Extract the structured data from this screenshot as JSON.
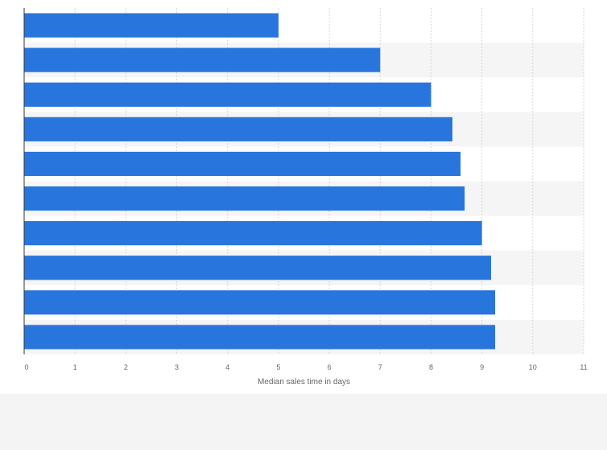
{
  "chart_data": {
    "type": "bar",
    "orientation": "horizontal",
    "categories": [
      "",
      "",
      "",
      "",
      "",
      "",
      "",
      "",
      "",
      ""
    ],
    "values": [
      5.0,
      7.0,
      8.0,
      8.42,
      8.58,
      8.66,
      9.0,
      9.18,
      9.26,
      9.26
    ],
    "title": "",
    "xlabel": "Median sales time in days",
    "ylabel": "",
    "xlim": [
      0,
      11
    ],
    "xticks": [
      "0",
      "1",
      "2",
      "3",
      "4",
      "5",
      "6",
      "7",
      "8",
      "9",
      "10",
      "11"
    ],
    "grid": true,
    "bar_color": "#2876dd",
    "band_color": "#f5f5f5",
    "gridline_color": "#d6d6d6",
    "axis_color": "#333333"
  }
}
